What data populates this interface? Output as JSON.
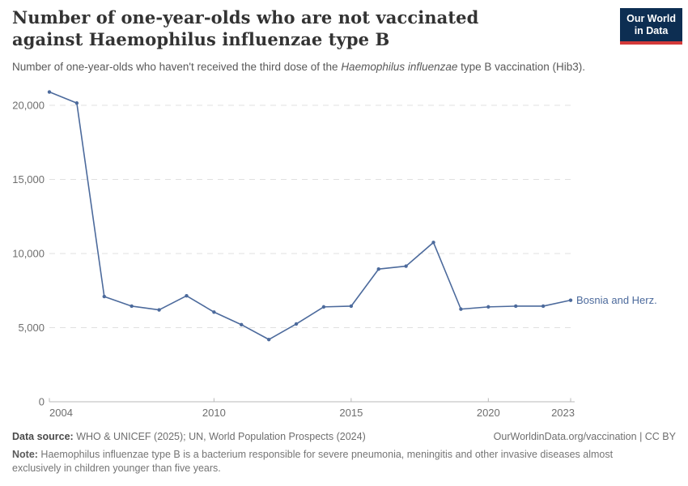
{
  "header": {
    "title": "Number of one-year-olds who are not vaccinated against Haemophilus influenzae type B",
    "subtitle_prefix": "Number of one-year-olds who haven't received the third dose of the ",
    "subtitle_italic": "Haemophilus influenzae",
    "subtitle_suffix": " type B vaccination (Hib3).",
    "logo_line1": "Our World",
    "logo_line2": "in Data"
  },
  "chart_data": {
    "type": "line",
    "title": "Number of one-year-olds who are not vaccinated against Haemophilus influenzae type B",
    "subtitle": "Number of one-year-olds who haven't received the third dose of the Haemophilus influenzae type B vaccination (Hib3).",
    "x": [
      2004,
      2005,
      2006,
      2007,
      2008,
      2009,
      2010,
      2011,
      2012,
      2013,
      2014,
      2015,
      2016,
      2017,
      2018,
      2019,
      2020,
      2021,
      2022,
      2023
    ],
    "series": [
      {
        "name": "Bosnia and Herz.",
        "color": "#4c6a9c",
        "values": [
          20900,
          20150,
          7100,
          6450,
          6200,
          7150,
          6050,
          5200,
          4200,
          5250,
          6400,
          6450,
          8950,
          9150,
          10750,
          6250,
          6400,
          6450,
          6450,
          6850
        ]
      }
    ],
    "x_ticks": [
      2004,
      2010,
      2015,
      2020,
      2023
    ],
    "y_ticks": [
      0,
      5000,
      10000,
      15000,
      20000
    ],
    "xlim": [
      2004,
      2023
    ],
    "ylim": [
      0,
      21000
    ],
    "grid": "horizontal dashed",
    "legend_position": "end-of-line label",
    "xlabel": "",
    "ylabel": ""
  },
  "footer": {
    "datasource_label": "Data source:",
    "datasource_text": " WHO & UNICEF (2025); UN, World Population Prospects (2024)",
    "link_text": "OurWorldinData.org/vaccination | CC BY",
    "note_label": "Note:",
    "note_text": " Haemophilus influenzae type B is a bacterium responsible for severe pneumonia, meningitis and other invasive diseases almost exclusively in children younger than five years."
  },
  "colors": {
    "line": "#4c6a9c",
    "logo_bg": "#0d2e52",
    "logo_red": "#d33a3a",
    "gridline": "#e0e0e0",
    "axis": "#b8b8b8",
    "tick_text": "#6e6e6e"
  }
}
